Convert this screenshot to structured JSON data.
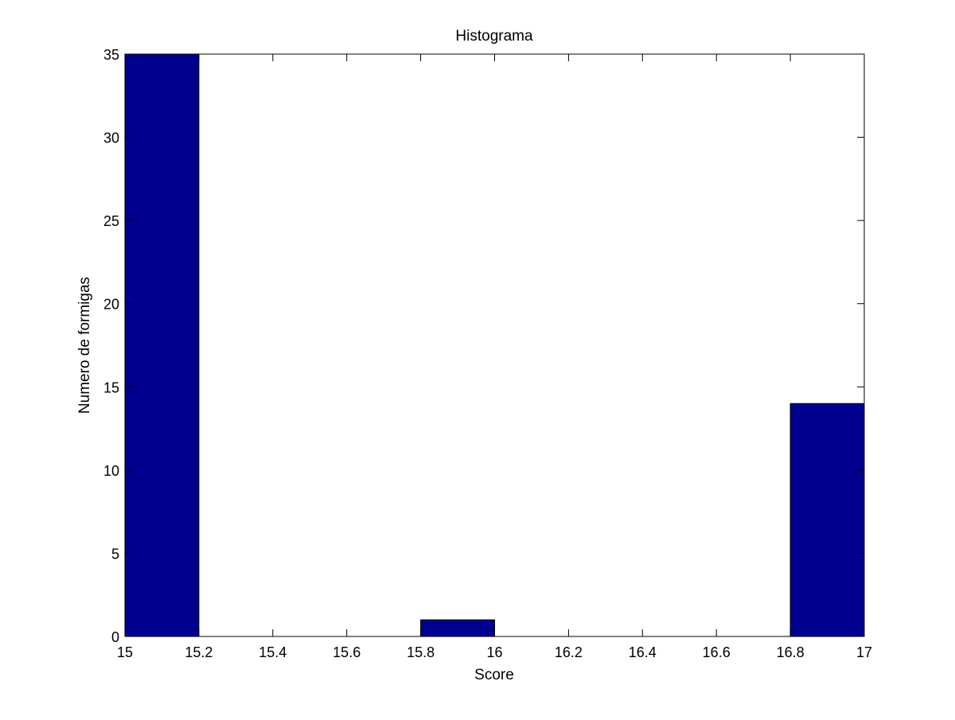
{
  "chart_data": {
    "type": "bar",
    "title": "Histograma",
    "xlabel": "Score",
    "ylabel": "Numero de formigas",
    "xlim": [
      15,
      17
    ],
    "ylim": [
      0,
      35
    ],
    "xticks": [
      15,
      15.2,
      15.4,
      15.6,
      15.8,
      16,
      16.2,
      16.4,
      16.6,
      16.8,
      17
    ],
    "xtick_labels": [
      "15",
      "15.2",
      "15.4",
      "15.6",
      "15.8",
      "16",
      "16.2",
      "16.4",
      "16.6",
      "16.8",
      "17"
    ],
    "yticks": [
      0,
      5,
      10,
      15,
      20,
      25,
      30,
      35
    ],
    "ytick_labels": [
      "0",
      "5",
      "10",
      "15",
      "20",
      "25",
      "30",
      "35"
    ],
    "bins": [
      {
        "x0": 15.0,
        "x1": 15.2,
        "count": 35
      },
      {
        "x0": 15.2,
        "x1": 15.4,
        "count": 0
      },
      {
        "x0": 15.4,
        "x1": 15.6,
        "count": 0
      },
      {
        "x0": 15.6,
        "x1": 15.8,
        "count": 0
      },
      {
        "x0": 15.8,
        "x1": 16.0,
        "count": 1
      },
      {
        "x0": 16.0,
        "x1": 16.2,
        "count": 0
      },
      {
        "x0": 16.2,
        "x1": 16.4,
        "count": 0
      },
      {
        "x0": 16.4,
        "x1": 16.6,
        "count": 0
      },
      {
        "x0": 16.6,
        "x1": 16.8,
        "count": 0
      },
      {
        "x0": 16.8,
        "x1": 17.0,
        "count": 14
      }
    ],
    "grid": false,
    "colors": {
      "bar_fill": "#00008f",
      "bar_edge": "#000000",
      "axes": "#000000",
      "background": "#ffffff"
    }
  }
}
